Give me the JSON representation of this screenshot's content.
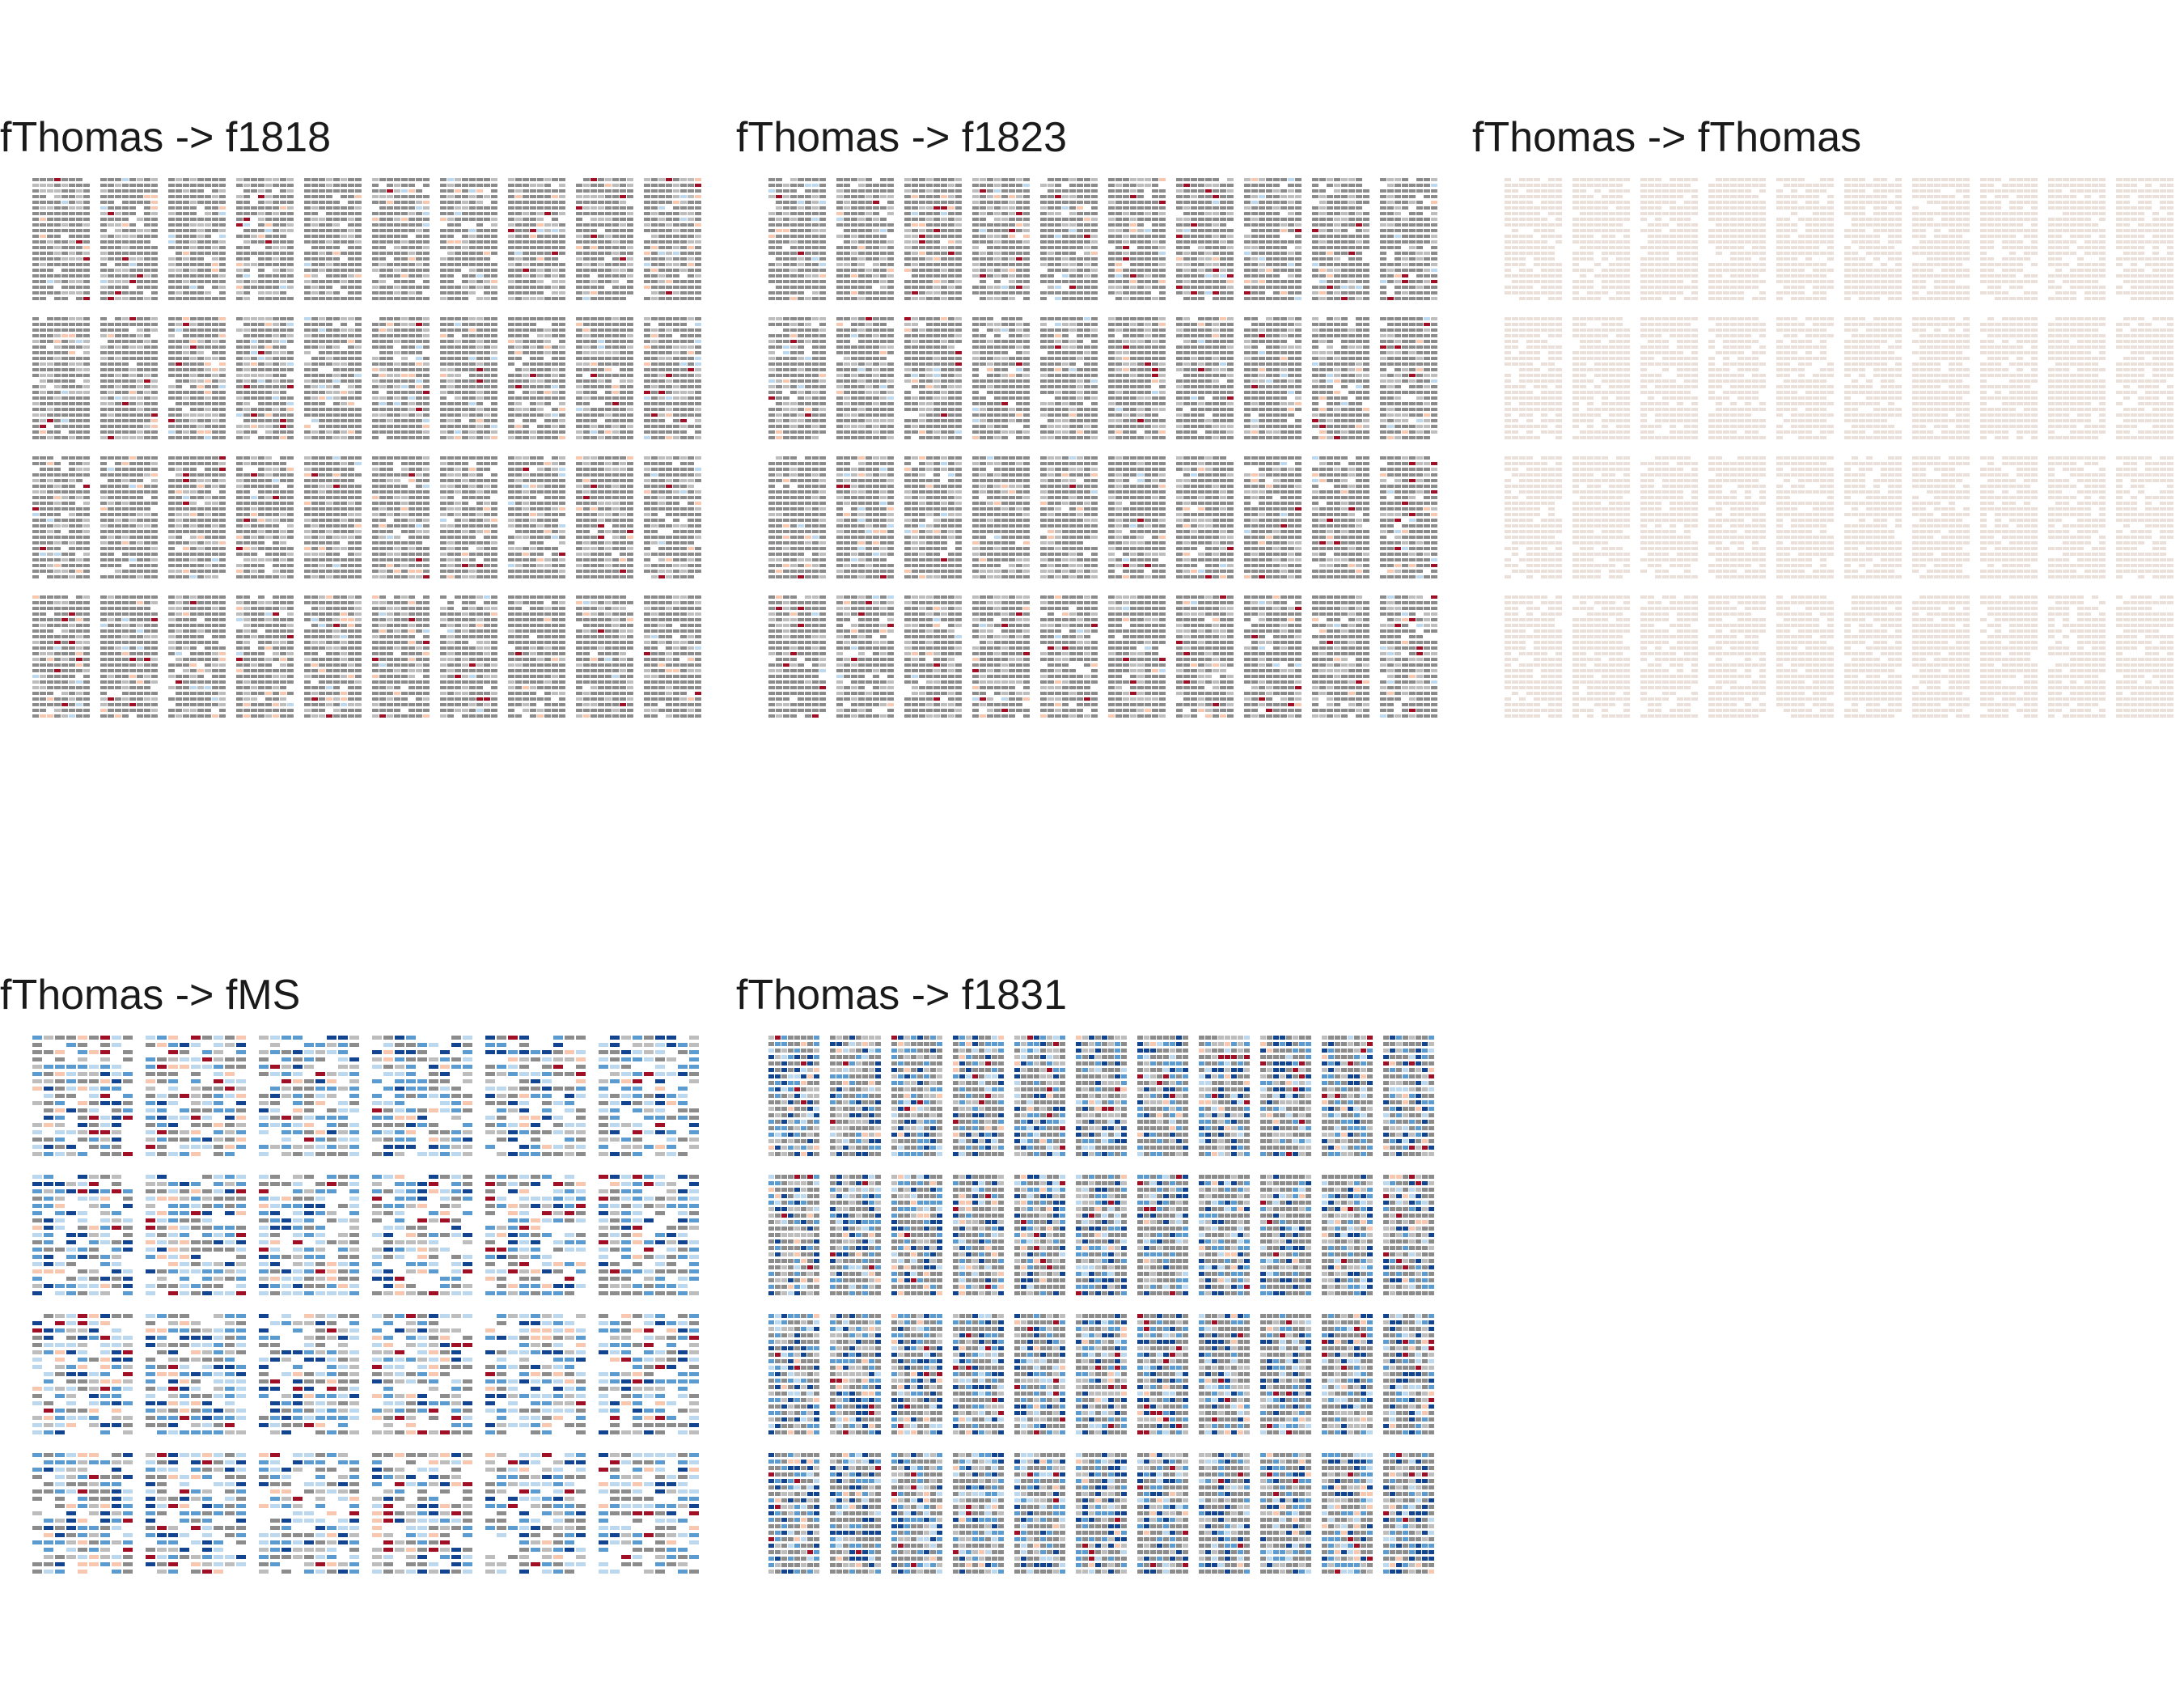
{
  "palette": {
    "neutral": "#8c8c8c",
    "neutral_light": "#bdbdbd",
    "faint": "#eadfd9",
    "blue_light": "#bcd8ee",
    "blue_mid": "#5b9bd0",
    "blue_dark": "#12448f",
    "red_light": "#f7c7b0",
    "red_mid": "#e06655",
    "red_dark": "#9f0f25"
  },
  "panels": [
    {
      "id": "p1818",
      "title": "fThomas -> f1818",
      "rows": 4,
      "cols": 10,
      "style": "gray"
    },
    {
      "id": "p1823",
      "title": "fThomas -> f1823",
      "rows": 4,
      "cols": 10,
      "style": "gray"
    },
    {
      "id": "pThomas",
      "title": "fThomas -> fThomas",
      "rows": 4,
      "cols": 10,
      "style": "faint"
    },
    {
      "id": "pMS",
      "title": "fThomas -> fMS",
      "rows": 4,
      "cols": 6,
      "style": "mixed"
    },
    {
      "id": "p1831",
      "title": "fThomas -> f1831",
      "rows": 4,
      "cols": 11,
      "style": "blue"
    }
  ]
}
